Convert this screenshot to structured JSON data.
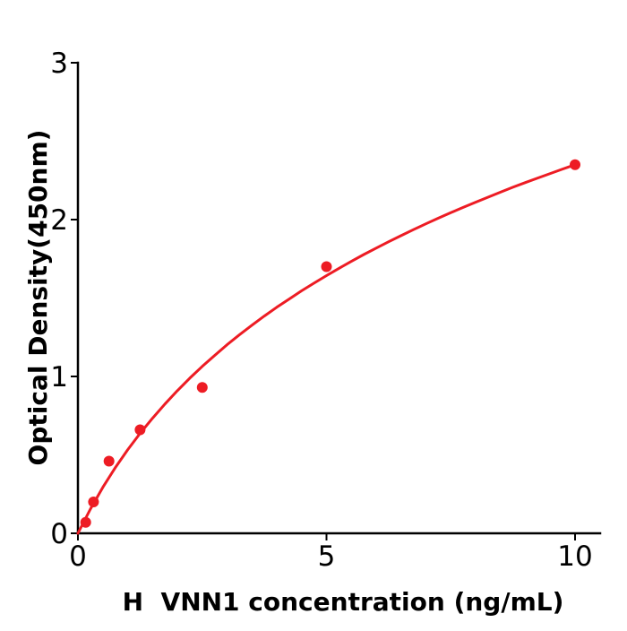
{
  "figure": {
    "background_color": "#ffffff",
    "axis_color": "#000000",
    "accent_color": "#ed1c24"
  },
  "chart_data": {
    "type": "scatter",
    "title": "",
    "xlabel": "H  VNN1 concentration (ng/mL)",
    "ylabel": "Optical Density(450nm)",
    "xlim": [
      0,
      10.5
    ],
    "ylim": [
      0,
      3
    ],
    "grid": false,
    "legend": "none",
    "x_ticks": [
      {
        "value": 0,
        "label": "0"
      },
      {
        "value": 5,
        "label": "5"
      },
      {
        "value": 10,
        "label": "10"
      }
    ],
    "y_ticks": [
      {
        "value": 0,
        "label": "0"
      },
      {
        "value": 1,
        "label": "1"
      },
      {
        "value": 2,
        "label": "2"
      },
      {
        "value": 3,
        "label": "3"
      }
    ],
    "series": [
      {
        "name": "standard-points",
        "type": "scatter",
        "color": "#ed1c24",
        "marker_radius": 6,
        "x": [
          0.156,
          0.313,
          0.625,
          1.25,
          2.5,
          5,
          10
        ],
        "y": [
          0.07,
          0.2,
          0.46,
          0.66,
          0.93,
          1.7,
          2.35
        ]
      },
      {
        "name": "fit-curve",
        "type": "line",
        "color": "#ed1c24",
        "line_width": 3,
        "x": [
          0,
          0.25,
          0.5,
          0.75,
          1,
          1.25,
          1.5,
          1.75,
          2,
          2.25,
          2.5,
          2.75,
          3,
          3.25,
          3.5,
          3.75,
          4,
          4.25,
          4.5,
          4.75,
          5,
          5.25,
          5.5,
          5.75,
          6,
          6.25,
          6.5,
          6.75,
          7,
          7.25,
          7.5,
          7.75,
          8,
          8.25,
          8.5,
          8.75,
          9,
          9.25,
          9.5,
          9.75,
          10
        ],
        "y": [
          0.0,
          0.154,
          0.293,
          0.418,
          0.532,
          0.637,
          0.734,
          0.824,
          0.909,
          0.989,
          1.064,
          1.134,
          1.202,
          1.266,
          1.327,
          1.385,
          1.441,
          1.494,
          1.546,
          1.595,
          1.643,
          1.689,
          1.734,
          1.777,
          1.818,
          1.859,
          1.898,
          1.936,
          1.973,
          2.009,
          2.044,
          2.078,
          2.111,
          2.143,
          2.175,
          2.206,
          2.236,
          2.265,
          2.294,
          2.322,
          2.35
        ]
      }
    ]
  }
}
